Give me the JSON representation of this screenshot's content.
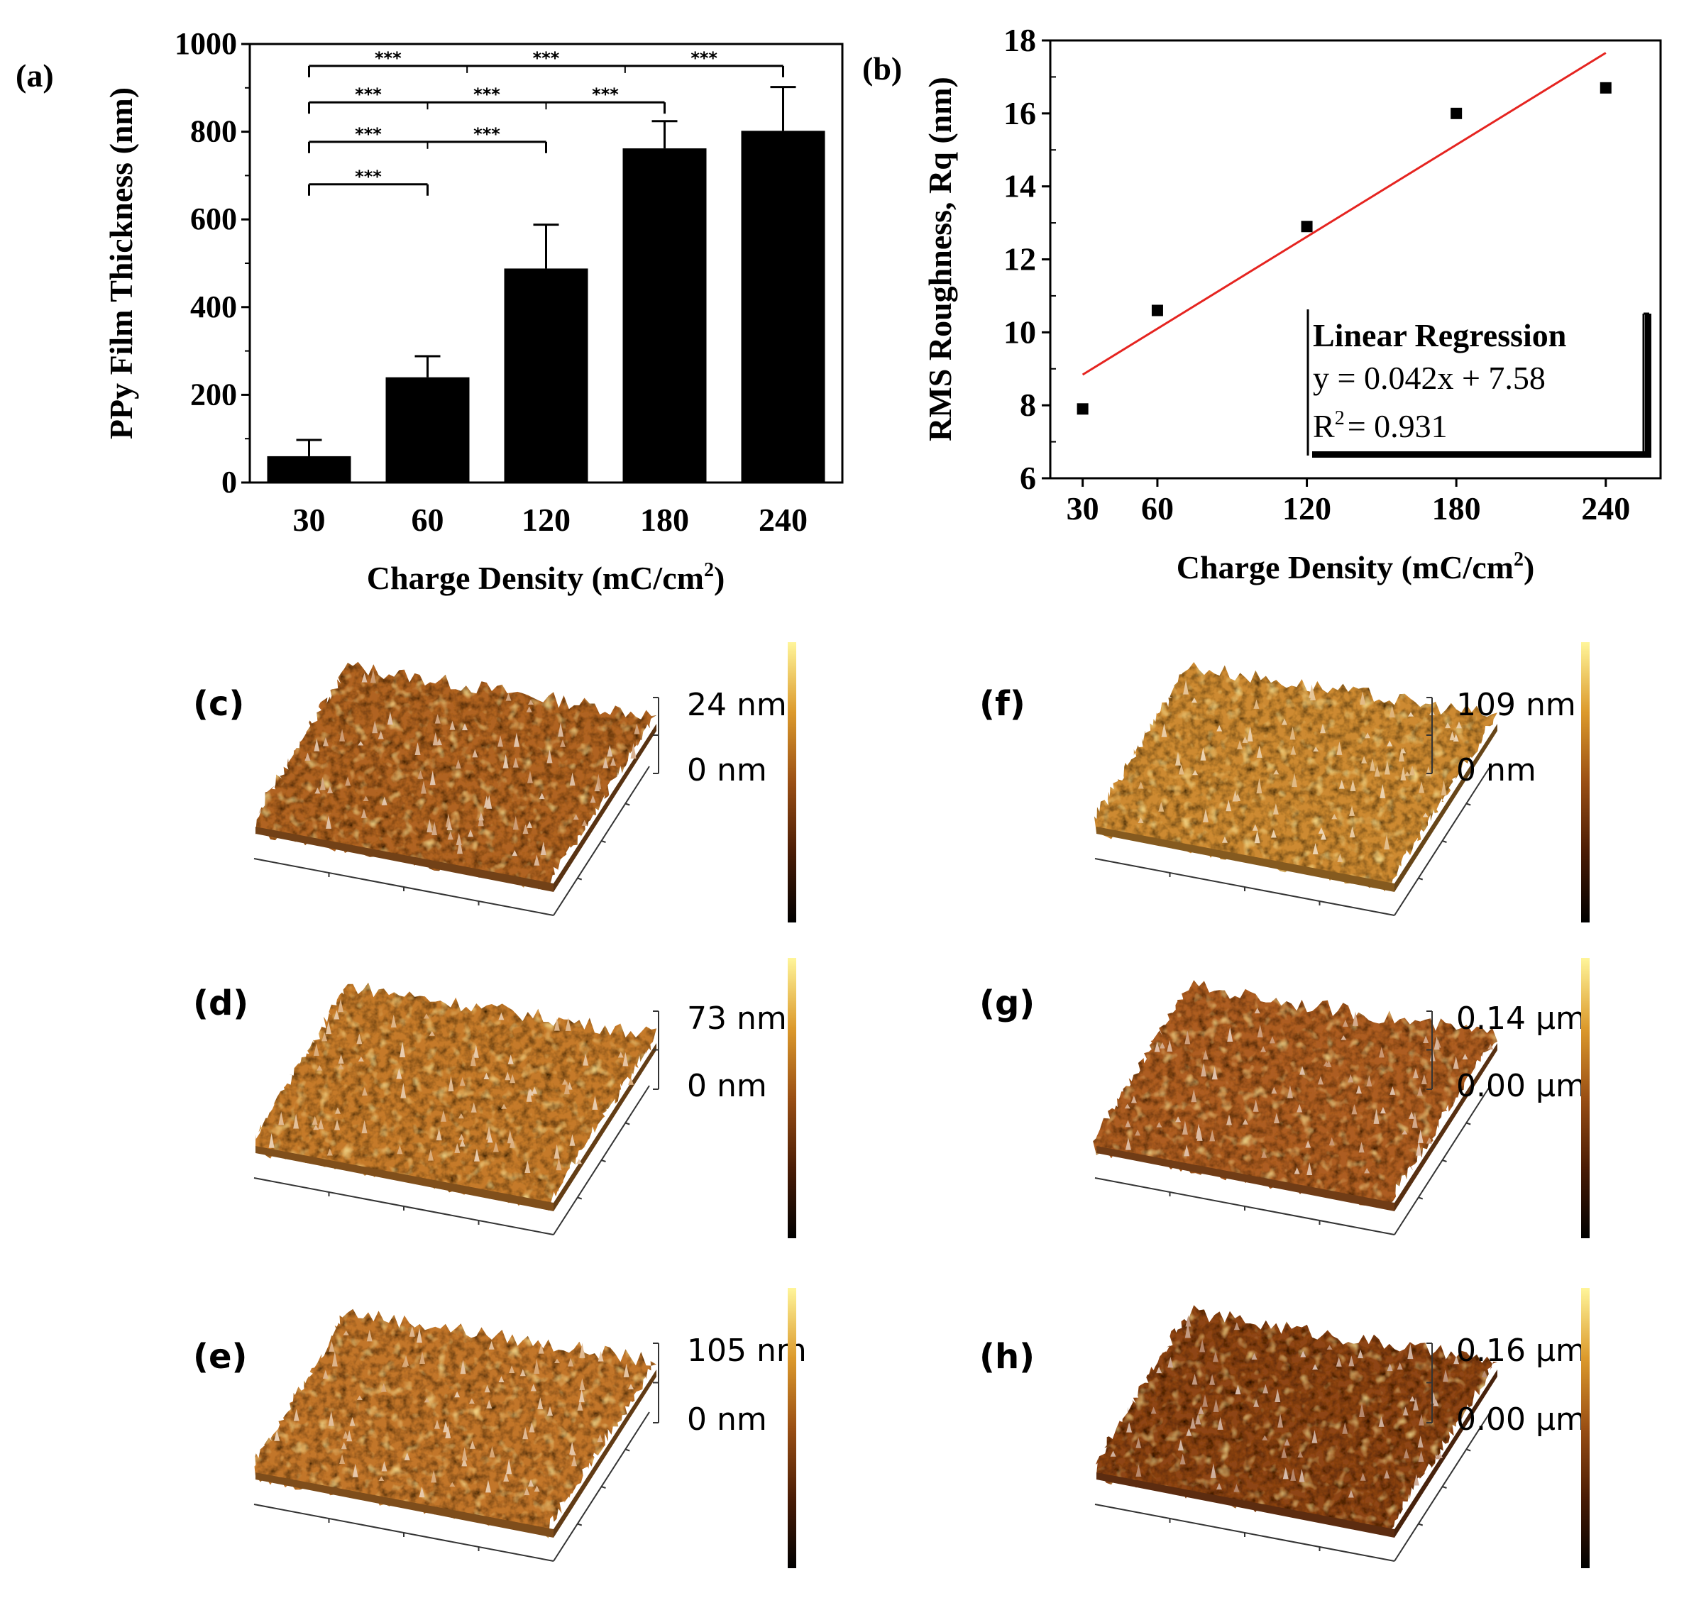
{
  "chart_data": [
    {
      "panel": "(a)",
      "type": "bar",
      "categories": [
        "30",
        "60",
        "120",
        "180",
        "240"
      ],
      "values": [
        60,
        240,
        488,
        762,
        802
      ],
      "errors": [
        37,
        48,
        100,
        62,
        100
      ],
      "xlabel": "Charge Density (mC/cm",
      "xlabel_sup": "2",
      "xlabel_end": ")",
      "ylabel": "PPy Film Thickness (nm)",
      "ylim": [
        0,
        1000
      ],
      "yticks": [
        0,
        200,
        400,
        600,
        800,
        1000
      ],
      "significance": [
        {
          "from": 0,
          "to": 1,
          "level": 680,
          "segment_labels": [
            "***"
          ]
        },
        {
          "from": 0,
          "to": 2,
          "level": 777,
          "segment_labels": [
            "***",
            "***"
          ]
        },
        {
          "from": 0,
          "to": 3,
          "level": 867,
          "segment_labels": [
            "***",
            "***",
            "***"
          ]
        },
        {
          "from": 0,
          "to": 4,
          "level": 950,
          "segment_labels": [
            "***",
            "***",
            "***"
          ]
        }
      ]
    },
    {
      "panel": "(b)",
      "type": "scatter",
      "x": [
        30,
        60,
        120,
        180,
        240
      ],
      "y": [
        7.9,
        10.6,
        12.9,
        16.0,
        16.7
      ],
      "fit": {
        "slope": 0.042,
        "intercept": 7.58,
        "x_range": [
          30,
          240
        ],
        "color": "#e52420"
      },
      "xlabel": "Charge Density (mC/cm",
      "xlabel_sup": "2",
      "xlabel_end": ")",
      "ylabel": "RMS Roughness, Rq (nm)",
      "xlim": [
        17,
        262
      ],
      "ylim": [
        6,
        18
      ],
      "xticks": [
        30,
        60,
        120,
        180,
        240
      ],
      "yticks": [
        6,
        8,
        10,
        12,
        14,
        16,
        18
      ],
      "legend": {
        "title": "Linear Regression",
        "equation": "y = 0.042x + 7.58",
        "r2_prefix": "R",
        "r2_sup": "2",
        "r2_value": "= 0.931"
      }
    }
  ],
  "afm_panels": [
    {
      "id": "c",
      "label": "(c)",
      "max": "24 nm",
      "min": "0 nm",
      "tone": "#b06424"
    },
    {
      "id": "d",
      "label": "(d)",
      "max": "73 nm",
      "min": "0 nm",
      "tone": "#c57a2a"
    },
    {
      "id": "e",
      "label": "(e)",
      "max": "105 nm",
      "min": "0 nm",
      "tone": "#c27629"
    },
    {
      "id": "f",
      "label": "(f)",
      "max": "109 nm",
      "min": "0 nm",
      "tone": "#cd8a30"
    },
    {
      "id": "g",
      "label": "(g)",
      "max": "0.14 µm",
      "min": "0.00 µm",
      "tone": "#ad5d22"
    },
    {
      "id": "h",
      "label": "(h)",
      "max": "0.16 µm",
      "min": "0.00 µm",
      "tone": "#8e4418"
    }
  ],
  "colors": {
    "bar": "#000000",
    "points": "#000000",
    "fit": "#e52420"
  }
}
